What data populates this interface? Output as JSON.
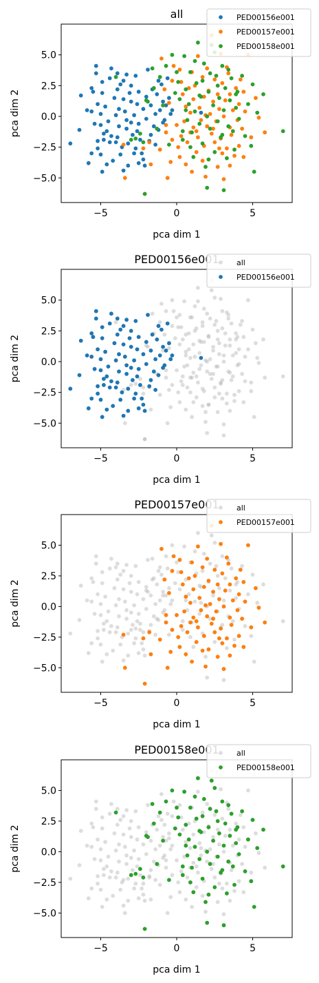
{
  "figure": {
    "colors": {
      "PED00156e001": "#1f77b4",
      "PED00157e001": "#ff7f0e",
      "PED00158e001": "#2ca02c",
      "all": "#b3b3b3"
    }
  },
  "chart_data": [
    {
      "type": "scatter",
      "title": "all",
      "xlabel": "pca dim 1",
      "ylabel": "pca dim 2",
      "xlim": [
        -7.6,
        7.6
      ],
      "ylim": [
        -7.0,
        7.5
      ],
      "xticks": [
        -5,
        0,
        5
      ],
      "yticks": [
        -5.0,
        -2.5,
        0.0,
        2.5,
        5.0
      ],
      "xtick_labels": [
        "−5",
        "0",
        "5"
      ],
      "ytick_labels": [
        "−5.0",
        "−2.5",
        "0.0",
        "2.5",
        "5.0"
      ],
      "legend": {
        "placement": "top-right",
        "entries": [
          "PED00156e001",
          "PED00157e001",
          "PED00158e001"
        ]
      },
      "series": [
        {
          "name": "PED00156e001",
          "ref": "PED00156e001"
        },
        {
          "name": "PED00157e001",
          "ref": "PED00157e001"
        },
        {
          "name": "PED00158e001",
          "ref": "PED00158e001"
        }
      ]
    },
    {
      "type": "scatter",
      "title": "PED00156e001",
      "xlabel": "pca dim 1",
      "ylabel": "pca dim 2",
      "xlim": [
        -7.6,
        7.6
      ],
      "ylim": [
        -7.0,
        7.5
      ],
      "xticks": [
        -5,
        0,
        5
      ],
      "yticks": [
        -5.0,
        -2.5,
        0.0,
        2.5,
        5.0
      ],
      "xtick_labels": [
        "−5",
        "0",
        "5"
      ],
      "ytick_labels": [
        "−5.0",
        "−2.5",
        "0.0",
        "2.5",
        "5.0"
      ],
      "legend": {
        "placement": "top-right",
        "entries": [
          "all",
          "PED00156e001"
        ]
      },
      "series": [
        {
          "name": "all",
          "ref": "all"
        },
        {
          "name": "PED00156e001",
          "ref": "PED00156e001"
        }
      ]
    },
    {
      "type": "scatter",
      "title": "PED00157e001",
      "xlabel": "pca dim 1",
      "ylabel": "pca dim 2",
      "xlim": [
        -7.6,
        7.6
      ],
      "ylim": [
        -7.0,
        7.5
      ],
      "xticks": [
        -5,
        0,
        5
      ],
      "yticks": [
        -5.0,
        -2.5,
        0.0,
        2.5,
        5.0
      ],
      "xtick_labels": [
        "−5",
        "0",
        "5"
      ],
      "ytick_labels": [
        "−5.0",
        "−2.5",
        "0.0",
        "2.5",
        "5.0"
      ],
      "legend": {
        "placement": "top-right",
        "entries": [
          "all",
          "PED00157e001"
        ]
      },
      "series": [
        {
          "name": "all",
          "ref": "all"
        },
        {
          "name": "PED00157e001",
          "ref": "PED00157e001"
        }
      ]
    },
    {
      "type": "scatter",
      "title": "PED00158e001",
      "xlabel": "pca dim 1",
      "ylabel": "pca dim 2",
      "xlim": [
        -7.6,
        7.6
      ],
      "ylim": [
        -7.0,
        7.5
      ],
      "xticks": [
        -5,
        0,
        5
      ],
      "yticks": [
        -5.0,
        -2.5,
        0.0,
        2.5,
        5.0
      ],
      "xtick_labels": [
        "−5",
        "0",
        "5"
      ],
      "ytick_labels": [
        "−5.0",
        "−2.5",
        "0.0",
        "2.5",
        "5.0"
      ],
      "legend": {
        "placement": "top-right",
        "entries": [
          "all",
          "PED00158e001"
        ]
      },
      "series": [
        {
          "name": "all",
          "ref": "all"
        },
        {
          "name": "PED00158e001",
          "ref": "PED00158e001"
        }
      ]
    }
  ],
  "points": {
    "PED00156e001": [
      [
        -7.0,
        -2.2
      ],
      [
        -6.4,
        -1.1
      ],
      [
        -6.3,
        1.7
      ],
      [
        -5.9,
        0.5
      ],
      [
        -5.6,
        2.3
      ],
      [
        -5.5,
        2.0
      ],
      [
        -5.2,
        1.0
      ],
      [
        -5.0,
        0.2
      ],
      [
        -5.0,
        -0.7
      ],
      [
        -5.3,
        4.1
      ],
      [
        -5.3,
        3.5
      ],
      [
        -4.9,
        2.8
      ],
      [
        -5.2,
        -2.0
      ],
      [
        -5.2,
        -2.6
      ],
      [
        -5.0,
        -3.1
      ],
      [
        -4.8,
        -1.4
      ],
      [
        -4.9,
        -4.5
      ],
      [
        -4.6,
        -1.2
      ],
      [
        -4.5,
        -0.4
      ],
      [
        -4.4,
        -2.1
      ],
      [
        -4.7,
        0.8
      ],
      [
        -4.3,
        3.9
      ],
      [
        -4.1,
        1.5
      ],
      [
        -4.0,
        -2.1
      ],
      [
        -4.2,
        -3.6
      ],
      [
        -3.9,
        2.2
      ],
      [
        -3.8,
        0.6
      ],
      [
        -3.8,
        -0.8
      ],
      [
        -3.9,
        -1.7
      ],
      [
        -3.7,
        2.6
      ],
      [
        -3.6,
        -2.5
      ],
      [
        -3.5,
        -4.4
      ],
      [
        -3.5,
        1.4
      ],
      [
        -3.4,
        0.4
      ],
      [
        -3.3,
        3.4
      ],
      [
        -3.3,
        -1.0
      ],
      [
        -3.2,
        -2.2
      ],
      [
        -3.1,
        1.9
      ],
      [
        -3.0,
        -0.5
      ],
      [
        -3.0,
        2.5
      ],
      [
        -2.9,
        -1.5
      ],
      [
        -2.8,
        0.1
      ],
      [
        -2.7,
        3.3
      ],
      [
        -2.7,
        -2.6
      ],
      [
        -2.6,
        1.0
      ],
      [
        -2.5,
        -0.6
      ],
      [
        -2.5,
        2.0
      ],
      [
        -2.4,
        -1.9
      ],
      [
        -2.3,
        -3.0
      ],
      [
        -2.2,
        0.6
      ],
      [
        -2.2,
        -3.5
      ],
      [
        -2.0,
        1.6
      ],
      [
        -2.0,
        -0.2
      ],
      [
        -1.9,
        3.8
      ],
      [
        -1.8,
        -2.0
      ],
      [
        -1.7,
        0.9
      ],
      [
        -1.6,
        2.2
      ],
      [
        -1.5,
        -0.8
      ],
      [
        -1.4,
        0.2
      ],
      [
        -1.3,
        1.8
      ],
      [
        -1.2,
        -1.1
      ],
      [
        -1.1,
        0.5
      ],
      [
        -1.0,
        2.6
      ],
      [
        -0.9,
        1.2
      ],
      [
        -0.8,
        -0.3
      ],
      [
        -0.7,
        0.9
      ],
      [
        -0.5,
        1.5
      ],
      [
        -0.4,
        0.2
      ],
      [
        -0.3,
        0.5
      ],
      [
        -5.8,
        -3.8
      ],
      [
        -5.6,
        -3.0
      ],
      [
        -4.6,
        -3.9
      ],
      [
        -4.3,
        -1.6
      ],
      [
        -4.0,
        0.1
      ],
      [
        -3.7,
        -3.1
      ],
      [
        -3.2,
        -4.0
      ],
      [
        -2.8,
        -3.0
      ],
      [
        -2.5,
        -3.8
      ],
      [
        -2.1,
        -4.0
      ],
      [
        -5.6,
        0.4
      ],
      [
        -4.9,
        1.9
      ],
      [
        -4.4,
        3.1
      ],
      [
        -3.9,
        3.5
      ],
      [
        -3.5,
        2.9
      ],
      [
        -3.0,
        1.2
      ],
      [
        -2.6,
        -1.2
      ],
      [
        -1.7,
        -1.5
      ],
      [
        -1.4,
        -2.3
      ],
      [
        -1.2,
        2.9
      ],
      [
        -0.9,
        -0.5
      ],
      [
        -0.6,
        3.1
      ],
      [
        -5.4,
        -0.6
      ],
      [
        -4.8,
        -1.9
      ],
      [
        -3.3,
        -0.3
      ],
      [
        1.6,
        0.3
      ]
    ],
    "PED00157e001": [
      [
        -3.4,
        -5.0
      ],
      [
        -3.5,
        -2.3
      ],
      [
        -2.1,
        -6.3
      ],
      [
        -2.2,
        -2.6
      ],
      [
        -1.8,
        -2.1
      ],
      [
        -1.7,
        -3.9
      ],
      [
        -1.0,
        4.7
      ],
      [
        -0.8,
        2.2
      ],
      [
        -0.7,
        -0.7
      ],
      [
        -0.7,
        -1.3
      ],
      [
        -0.6,
        -5.0
      ],
      [
        -0.5,
        1.1
      ],
      [
        -0.4,
        -3.7
      ],
      [
        -0.3,
        2.9
      ],
      [
        -0.2,
        4.1
      ],
      [
        0.0,
        -0.7
      ],
      [
        0.1,
        -2.5
      ],
      [
        0.2,
        -3.3
      ],
      [
        0.3,
        -1.6
      ],
      [
        0.3,
        2.8
      ],
      [
        0.4,
        1.8
      ],
      [
        0.5,
        -0.4
      ],
      [
        0.6,
        -3.9
      ],
      [
        0.7,
        -2.1
      ],
      [
        0.8,
        2.3
      ],
      [
        0.9,
        -1.3
      ],
      [
        0.9,
        0.3
      ],
      [
        1.0,
        3.6
      ],
      [
        1.0,
        -4.5
      ],
      [
        1.1,
        -0.9
      ],
      [
        1.2,
        2.5
      ],
      [
        1.3,
        -2.9
      ],
      [
        1.4,
        -1.7
      ],
      [
        1.4,
        4.9
      ],
      [
        1.5,
        0.7
      ],
      [
        1.6,
        -0.3
      ],
      [
        1.7,
        3.2
      ],
      [
        1.8,
        -2.4
      ],
      [
        1.8,
        1.6
      ],
      [
        1.9,
        -4.9
      ],
      [
        2.0,
        -0.8
      ],
      [
        2.1,
        2.1
      ],
      [
        2.1,
        -3.5
      ],
      [
        2.2,
        0.2
      ],
      [
        2.3,
        6.6
      ],
      [
        2.3,
        -1.4
      ],
      [
        2.4,
        1.2
      ],
      [
        2.5,
        -2.1
      ],
      [
        2.5,
        3.0
      ],
      [
        2.6,
        -0.4
      ],
      [
        2.7,
        1.8
      ],
      [
        2.7,
        -4.1
      ],
      [
        2.8,
        0.6
      ],
      [
        2.9,
        -1.8
      ],
      [
        3.0,
        2.7
      ],
      [
        3.0,
        -3.0
      ],
      [
        3.1,
        -5.1
      ],
      [
        3.1,
        0.0
      ],
      [
        3.2,
        1.3
      ],
      [
        3.3,
        -2.6
      ],
      [
        3.4,
        3.5
      ],
      [
        3.5,
        -0.9
      ],
      [
        3.5,
        1.8
      ],
      [
        3.6,
        -1.5
      ],
      [
        3.7,
        0.5
      ],
      [
        3.8,
        -3.2
      ],
      [
        3.9,
        2.3
      ],
      [
        4.0,
        -0.3
      ],
      [
        4.1,
        1.0
      ],
      [
        4.1,
        -2.4
      ],
      [
        4.2,
        3.0
      ],
      [
        4.3,
        -1.0
      ],
      [
        4.4,
        -3.3
      ],
      [
        4.5,
        0.4
      ],
      [
        4.7,
        5.0
      ],
      [
        4.9,
        -1.7
      ],
      [
        5.2,
        1.5
      ],
      [
        5.4,
        -0.1
      ],
      [
        5.8,
        -1.3
      ],
      [
        1.3,
        -1.2
      ],
      [
        2.0,
        3.9
      ],
      [
        2.8,
        -2.6
      ],
      [
        3.3,
        4.0
      ],
      [
        4.4,
        2.0
      ],
      [
        0.6,
        0.8
      ],
      [
        1.7,
        -3.6
      ],
      [
        2.4,
        -1.0
      ],
      [
        3.5,
        -4.0
      ],
      [
        -1.1,
        -2.7
      ],
      [
        0.2,
        3.8
      ],
      [
        1.1,
        1.4
      ],
      [
        2.9,
        5.1
      ],
      [
        -0.3,
        -1.9
      ],
      [
        1.9,
        0.1
      ]
    ],
    "PED00158e001": [
      [
        -4.0,
        3.2
      ],
      [
        -3.0,
        -1.9
      ],
      [
        -2.7,
        -1.8
      ],
      [
        -2.2,
        -2.1
      ],
      [
        -2.1,
        -6.3
      ],
      [
        -2.0,
        1.3
      ],
      [
        -1.9,
        1.2
      ],
      [
        -1.5,
        2.3
      ],
      [
        -1.3,
        -1.0
      ],
      [
        -1.1,
        3.2
      ],
      [
        -0.9,
        0.9
      ],
      [
        -0.7,
        4.1
      ],
      [
        -0.5,
        -2.3
      ],
      [
        -0.3,
        5.0
      ],
      [
        0.0,
        3.6
      ],
      [
        0.1,
        2.8
      ],
      [
        0.2,
        1.4
      ],
      [
        0.4,
        -1.9
      ],
      [
        0.5,
        4.9
      ],
      [
        0.6,
        2.2
      ],
      [
        0.7,
        -0.3
      ],
      [
        0.8,
        1.0
      ],
      [
        0.9,
        3.6
      ],
      [
        1.0,
        -1.3
      ],
      [
        1.1,
        -3.3
      ],
      [
        1.2,
        0.4
      ],
      [
        1.3,
        2.7
      ],
      [
        1.4,
        6.0
      ],
      [
        1.5,
        -0.6
      ],
      [
        1.6,
        1.6
      ],
      [
        1.7,
        -2.2
      ],
      [
        1.8,
        4.3
      ],
      [
        1.9,
        -4.1
      ],
      [
        2.0,
        0.0
      ],
      [
        2.0,
        -5.8
      ],
      [
        2.1,
        2.0
      ],
      [
        2.2,
        -1.0
      ],
      [
        2.3,
        5.8
      ],
      [
        2.4,
        0.9
      ],
      [
        2.5,
        -2.9
      ],
      [
        2.6,
        3.3
      ],
      [
        2.7,
        -0.4
      ],
      [
        2.8,
        1.5
      ],
      [
        2.9,
        -1.7
      ],
      [
        3.0,
        4.1
      ],
      [
        3.1,
        -6.0
      ],
      [
        3.1,
        0.5
      ],
      [
        3.2,
        2.3
      ],
      [
        3.3,
        -3.4
      ],
      [
        3.4,
        -0.8
      ],
      [
        3.5,
        1.3
      ],
      [
        3.6,
        3.1
      ],
      [
        3.7,
        -1.2
      ],
      [
        3.8,
        -2.7
      ],
      [
        3.9,
        0.7
      ],
      [
        4.0,
        2.0
      ],
      [
        4.1,
        -0.2
      ],
      [
        4.3,
        3.3
      ],
      [
        4.5,
        -1.6
      ],
      [
        4.7,
        1.0
      ],
      [
        4.9,
        -2.4
      ],
      [
        5.0,
        2.6
      ],
      [
        5.1,
        -4.5
      ],
      [
        5.3,
        0.3
      ],
      [
        5.7,
        1.8
      ],
      [
        7.0,
        -1.2
      ],
      [
        0.4,
        -1.2
      ],
      [
        0.9,
        -2.5
      ],
      [
        1.2,
        4.5
      ],
      [
        1.7,
        2.9
      ],
      [
        2.2,
        3.5
      ],
      [
        2.5,
        5.2
      ],
      [
        3.0,
        -1.5
      ],
      [
        3.4,
        3.8
      ],
      [
        -2.4,
        -1.4
      ],
      [
        -0.1,
        1.9
      ],
      [
        0.6,
        0.5
      ],
      [
        1.5,
        1.7
      ],
      [
        2.7,
        2.5
      ],
      [
        3.9,
        1.8
      ],
      [
        2.1,
        -3.5
      ],
      [
        -1.6,
        3.9
      ]
    ]
  }
}
